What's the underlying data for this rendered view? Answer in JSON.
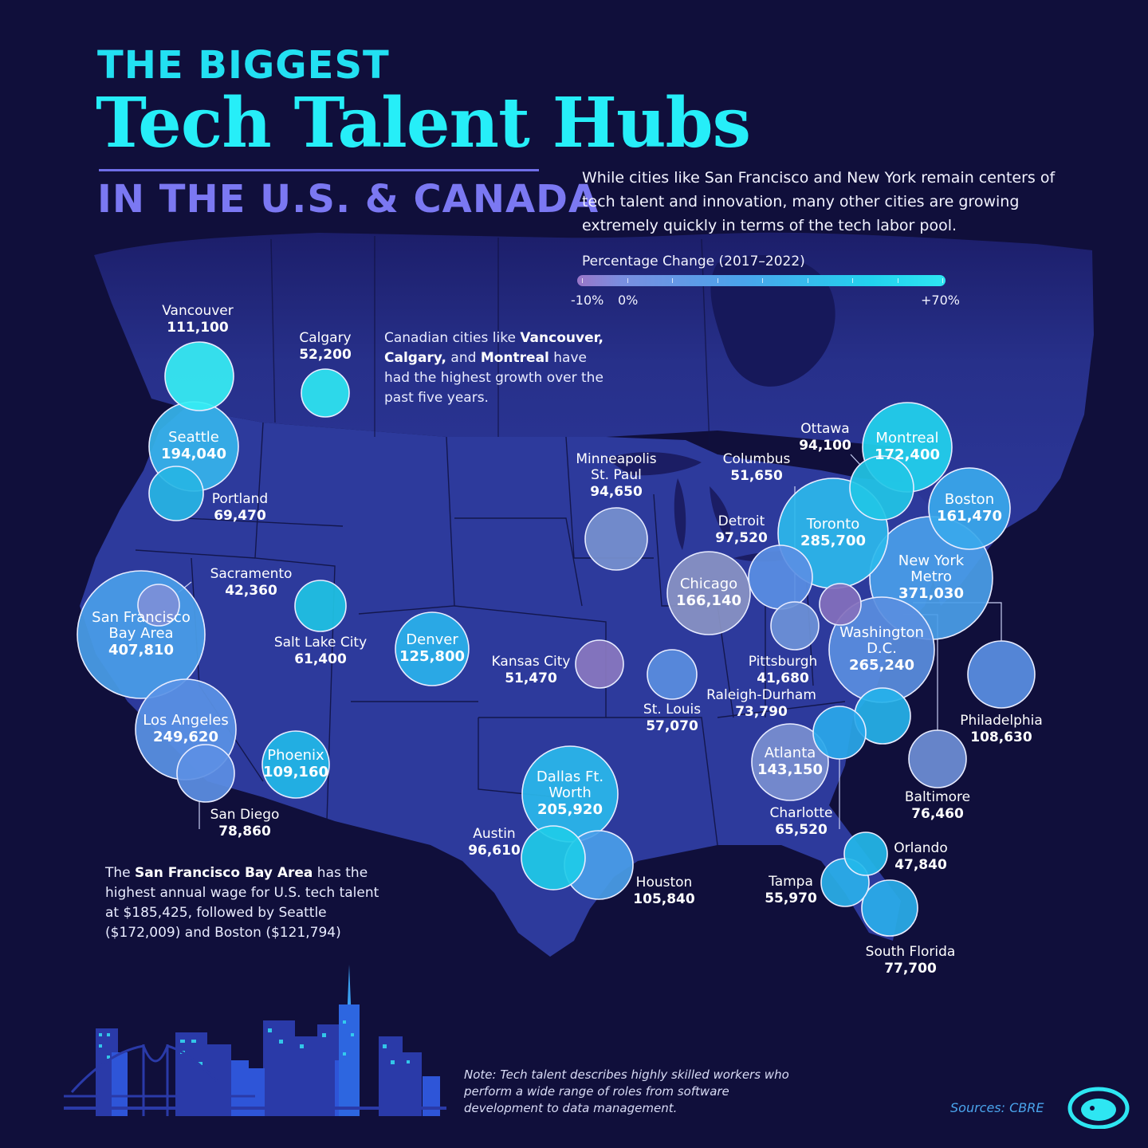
{
  "title": {
    "line1": "THE BIGGEST",
    "line2": "Tech Talent Hubs",
    "line3": "IN THE U.S. & CANADA"
  },
  "intro": "While cities like San Francisco and New York remain centers of tech talent and innovation, many other cities are growing extremely quickly in terms of the tech labor pool.",
  "legend": {
    "title": "Percentage Change (2017–2022)",
    "min_label": "-10%",
    "zero_label": "0%",
    "max_label": "+70%",
    "min": -10,
    "max": 70
  },
  "notes": {
    "canada": {
      "prefix": "Canadian cities like ",
      "c1": "Vancouver,",
      "c2": "Calgary,",
      "mid": " and ",
      "c3": "Montreal",
      "suffix": " have had the highest growth over the past five years."
    },
    "wage": {
      "prefix": "The ",
      "bold": "San Francisco Bay Area",
      "suffix": " has the highest annual wage for U.S. tech talent at $185,425, followed by Seattle ($172,009) and Boston ($121,794)"
    }
  },
  "footnote": "Note: Tech talent describes highly skilled workers who perform a wide range of roles from software development to data management.",
  "source": "Sources: CBRE",
  "colors": {
    "background": "#100f3b",
    "land": "#2d3a9a",
    "title_cyan": "#26eef8",
    "subtitle_purple": "#7b78f2",
    "growth_high": "#2ee6f2",
    "growth_mid": "#4aa4ec",
    "growth_low": "#7f8fd8",
    "decline": "#8a78c0"
  },
  "icons": [
    "skyline-illustration",
    "golden-gate-bridge",
    "visual-capitalist-logo-icon"
  ],
  "cities": [
    {
      "id": "vancouver",
      "name": "Vancouver",
      "value": "111,100",
      "color": "#36eef4"
    },
    {
      "id": "calgary",
      "name": "Calgary",
      "value": "52,200",
      "color": "#2ee6f2"
    },
    {
      "id": "seattle",
      "name": "Seattle",
      "value": "194,040",
      "color": "#36b4ec"
    },
    {
      "id": "portland",
      "name": "Portland",
      "value": "69,470",
      "color": "#27b5e4"
    },
    {
      "id": "sacramento",
      "name": "Sacramento",
      "value": "42,360",
      "color": "#7d8fd8"
    },
    {
      "id": "sf",
      "name": "San Francisco Bay Area",
      "value": "407,810",
      "color": "#4a9ee9"
    },
    {
      "id": "slc",
      "name": "Salt Lake City",
      "value": "61,400",
      "color": "#20c3e4"
    },
    {
      "id": "denver",
      "name": "Denver",
      "value": "125,800",
      "color": "#2ab2ec"
    },
    {
      "id": "la",
      "name": "Los Angeles",
      "value": "249,620",
      "color": "#5a92e6"
    },
    {
      "id": "sandiego",
      "name": "San Diego",
      "value": "78,860",
      "color": "#5c8fe4"
    },
    {
      "id": "phoenix",
      "name": "Phoenix",
      "value": "109,160",
      "color": "#22b8e8"
    },
    {
      "id": "minneapolis",
      "name": "Minneapolis St. Paul",
      "value": "94,650",
      "color": "#7791cf"
    },
    {
      "id": "kansascity",
      "name": "Kansas City",
      "value": "51,470",
      "color": "#8a78c0"
    },
    {
      "id": "stlouis",
      "name": "St. Louis",
      "value": "57,070",
      "color": "#5a8ee0"
    },
    {
      "id": "dallas",
      "name": "Dallas Ft. Worth",
      "value": "205,920",
      "color": "#2ab8ec"
    },
    {
      "id": "austin",
      "name": "Austin",
      "value": "96,610",
      "color": "#1fcbe8"
    },
    {
      "id": "houston",
      "name": "Houston",
      "value": "105,840",
      "color": "#4a9ee9"
    },
    {
      "id": "chicago",
      "name": "Chicago",
      "value": "166,140",
      "color": "#8a94c4"
    },
    {
      "id": "detroit",
      "name": "Detroit",
      "value": "97,520",
      "color": "#5a8fe4"
    },
    {
      "id": "columbus",
      "name": "Columbus",
      "value": "51,650",
      "color": "#6e93d8"
    },
    {
      "id": "pittsburgh",
      "name": "Pittsburgh",
      "value": "41,680",
      "color": "#8470bd"
    },
    {
      "id": "toronto",
      "name": "Toronto",
      "value": "285,700",
      "color": "#2cb8ec"
    },
    {
      "id": "ottawa",
      "name": "Ottawa",
      "value": "94,100",
      "color": "#22c6e6"
    },
    {
      "id": "montreal",
      "name": "Montreal",
      "value": "172,400",
      "color": "#22d2ee"
    },
    {
      "id": "boston",
      "name": "Boston",
      "value": "161,470",
      "color": "#3aa8ec"
    },
    {
      "id": "newyork",
      "name": "New York Metro",
      "value": "371,030",
      "color": "#4a9ee9"
    },
    {
      "id": "philadelphia",
      "name": "Philadelphia",
      "value": "108,630",
      "color": "#5a8fe4"
    },
    {
      "id": "baltimore",
      "name": "Baltimore",
      "value": "76,460",
      "color": "#6e8ed6"
    },
    {
      "id": "dc",
      "name": "Washington D.C.",
      "value": "265,240",
      "color": "#5a8ee0"
    },
    {
      "id": "raleigh",
      "name": "Raleigh-Durham",
      "value": "73,790",
      "color": "#26b2ea"
    },
    {
      "id": "charlotte",
      "name": "Charlotte",
      "value": "65,520",
      "color": "#2aa8ea"
    },
    {
      "id": "atlanta",
      "name": "Atlanta",
      "value": "143,150",
      "color": "#7a8fd0"
    },
    {
      "id": "orlando",
      "name": "Orlando",
      "value": "47,840",
      "color": "#24b8ea"
    },
    {
      "id": "tampa",
      "name": "Tampa",
      "value": "55,970",
      "color": "#2ab0ea"
    },
    {
      "id": "southflorida",
      "name": "South Florida",
      "value": "77,700",
      "color": "#2aaeea"
    }
  ]
}
